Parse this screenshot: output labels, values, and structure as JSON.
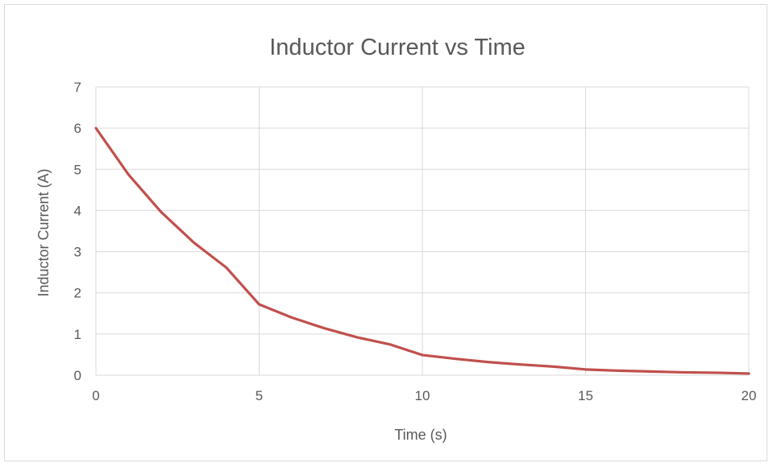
{
  "chart_data": {
    "type": "line",
    "title": "Inductor Current vs Time",
    "xlabel": "Time (s)",
    "ylabel": "Inductor Current (A)",
    "xlim": [
      0,
      20
    ],
    "ylim": [
      0,
      7
    ],
    "x_ticks": [
      "0",
      "5",
      "10",
      "15",
      "20"
    ],
    "y_ticks": [
      "0",
      "1",
      "2",
      "3",
      "4",
      "5",
      "6",
      "7"
    ],
    "grid": true,
    "legend": "none",
    "series": [
      {
        "color": "#c0504d",
        "x": [
          0,
          1,
          2,
          3,
          4,
          5,
          6,
          7,
          8,
          9,
          10,
          11,
          12,
          13,
          14,
          15,
          16,
          17,
          18,
          19,
          20
        ],
        "y": [
          6.0,
          4.87,
          3.96,
          3.22,
          2.61,
          1.72,
          1.4,
          1.14,
          0.92,
          0.75,
          0.49,
          0.4,
          0.32,
          0.26,
          0.21,
          0.14,
          0.11,
          0.09,
          0.07,
          0.06,
          0.04
        ]
      }
    ]
  }
}
